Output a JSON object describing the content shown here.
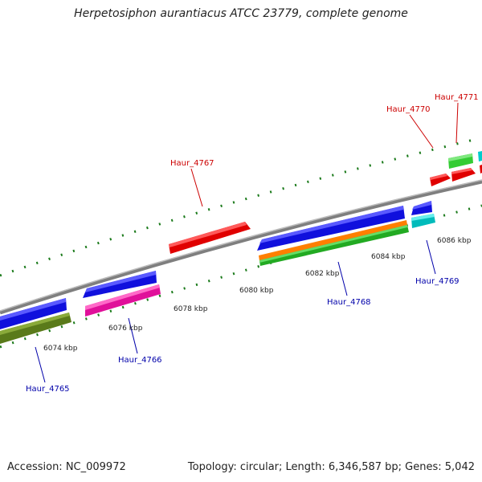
{
  "title": "Herpetosiphon aurantiacus ATCC 23779, complete genome",
  "footer": {
    "accession": "Accession: NC_009972",
    "summary": "Topology: circular; Length: 6,346,587 bp; Genes: 5,042"
  },
  "colors": {
    "forward_label": "#cc0000",
    "reverse_label": "#0000aa",
    "tick": "#1a7a1a",
    "backbone": "#888888"
  },
  "scale_labels": [
    "6074 kbp",
    "6076 kbp",
    "6078 kbp",
    "6080 kbp",
    "6082 kbp",
    "6084 kbp",
    "6086 kbp"
  ],
  "gene_labels": [
    {
      "name": "Haur_4765",
      "strand": "reverse"
    },
    {
      "name": "Haur_4766",
      "strand": "reverse"
    },
    {
      "name": "Haur_4767",
      "strand": "forward"
    },
    {
      "name": "Haur_4768",
      "strand": "reverse"
    },
    {
      "name": "Haur_4769",
      "strand": "reverse"
    },
    {
      "name": "Haur_4770",
      "strand": "forward"
    },
    {
      "name": "Haur_4771",
      "strand": "forward"
    }
  ]
}
